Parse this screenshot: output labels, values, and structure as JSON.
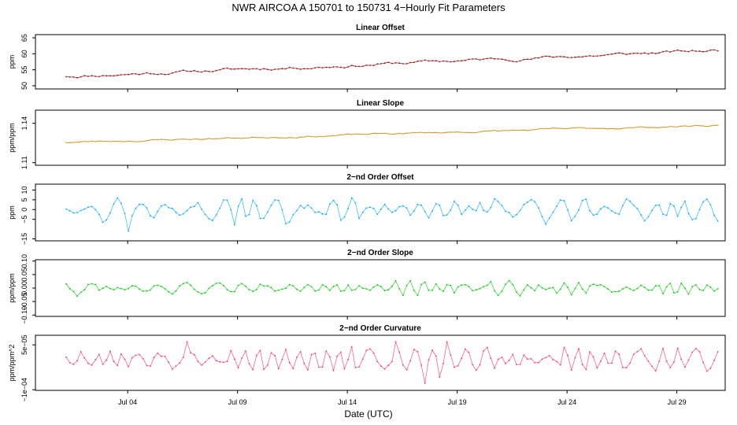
{
  "figure": {
    "title": "NWR   AIRCOA A   150701 to 150731   4−Hourly Fit Parameters",
    "xlabel": "Date (UTC)"
  },
  "chart_data": {
    "type": "line",
    "x_unit": "day of July 2015",
    "xlim": [
      -0.2,
      31.2
    ],
    "x_ticks": [
      4,
      9,
      14,
      19,
      24,
      29
    ],
    "x_tick_labels": [
      "Jul 04",
      "Jul 09",
      "Jul 14",
      "Jul 19",
      "Jul 24",
      "Jul 29"
    ],
    "panels": [
      {
        "id": "linear-offset",
        "title": "Linear Offset",
        "ylabel": "ppm",
        "ylim": [
          49,
          66
        ],
        "yticks": [
          50,
          55,
          60,
          65
        ],
        "ytick_labels": [
          "50",
          "55",
          "60",
          "65"
        ],
        "color": "#cc0000",
        "line_color": "#3a0000",
        "series": {
          "name": "Linear Offset",
          "x_start": 1.2,
          "x_end": 30.8,
          "start": 53.0,
          "end": 61.0,
          "noise": 0.45,
          "seed": 11
        }
      },
      {
        "id": "linear-slope",
        "title": "Linear Slope",
        "ylabel": "ppm/ppm",
        "ylim": [
          1.108,
          1.15
        ],
        "yticks": [
          1.11,
          1.14
        ],
        "ytick_labels": [
          "1.11",
          "1.14"
        ],
        "color": "#ffaa00",
        "line_color": "#7a5200",
        "series": {
          "name": "Linear Slope",
          "x_start": 1.2,
          "x_end": 30.8,
          "start": 1.1255,
          "end": 1.1385,
          "noise": 0.0006,
          "seed": 23
        }
      },
      {
        "id": "second-order-offset",
        "title": "2−nd Order Offset",
        "ylabel": "ppm",
        "ylim": [
          -16,
          13
        ],
        "yticks": [
          -15,
          -5,
          0,
          5,
          10
        ],
        "ytick_labels": [
          "−15",
          "−5",
          "0",
          "5",
          "10"
        ],
        "color": "#00aaff",
        "line_color": "#00aaff",
        "series": {
          "name": "2nd Order Offset",
          "x_start": 1.2,
          "x_end": 30.8,
          "amplitude": 4.5,
          "min": -11,
          "max": 6,
          "seed": 37
        }
      },
      {
        "id": "second-order-slope",
        "title": "2−nd Order Slope",
        "ylabel": "ppm/ppm",
        "ylim": [
          -0.105,
          0.105
        ],
        "yticks": [
          -0.1,
          -0.05,
          0.0,
          0.05,
          0.1
        ],
        "ytick_labels": [
          "−0.10",
          "−0.05",
          "0.00",
          "0.05",
          "0.10"
        ],
        "color": "#00cc00",
        "line_color": "#00cc00",
        "series": {
          "name": "2nd Order Slope",
          "x_start": 1.2,
          "x_end": 30.8,
          "amplitude": 0.018,
          "min": -0.04,
          "max": 0.045,
          "seed": 53
        }
      },
      {
        "id": "second-order-curvature",
        "title": "2−nd Order Curvature",
        "ylabel": "ppm/ppm^2",
        "ylim": [
          -0.000102,
          8.2e-05
        ],
        "yticks": [
          -0.0001,
          5e-05
        ],
        "ytick_labels": [
          "−1e−04",
          "5e−05"
        ],
        "color": "#ff3366",
        "line_color": "#ff3366",
        "series": {
          "name": "2nd Order Curvature",
          "x_start": 1.2,
          "x_end": 30.8,
          "amplitude": 3e-05,
          "min": -8e-05,
          "max": 6e-05,
          "seed": 71
        }
      }
    ]
  }
}
